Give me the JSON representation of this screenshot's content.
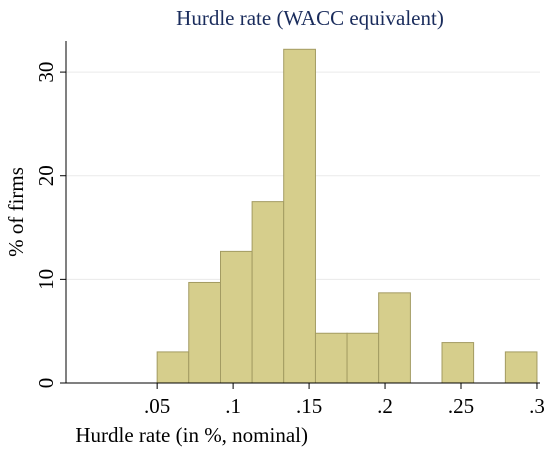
{
  "chart_data": {
    "type": "histogram",
    "title": "Hurdle rate (WACC equivalent)",
    "x_label": "Hurdle rate (in %, nominal)",
    "y_label": "% of firms",
    "bins": [
      0.05,
      0.0708,
      0.0917,
      0.1125,
      0.1333,
      0.1542,
      0.175,
      0.1958,
      0.2167,
      0.2375,
      0.2583,
      0.2792,
      0.3
    ],
    "values": [
      3,
      9.7,
      12.7,
      17.5,
      32.2,
      4.8,
      4.8,
      8.7,
      0,
      3.9,
      0,
      3
    ],
    "color": "#d6ce8c",
    "edge_color": "#a39b62",
    "xlim": [
      -0.01,
      0.302
    ],
    "ylim": [
      0,
      33
    ],
    "xticks": [
      {
        "value": 0.05,
        "label": ".05"
      },
      {
        "value": 0.1,
        "label": ".1"
      },
      {
        "value": 0.15,
        "label": ".15"
      },
      {
        "value": 0.2,
        "label": ".2"
      },
      {
        "value": 0.25,
        "label": ".25"
      },
      {
        "value": 0.3,
        "label": ".3"
      }
    ],
    "yticks": [
      0,
      10,
      20,
      30
    ],
    "grid": true
  }
}
